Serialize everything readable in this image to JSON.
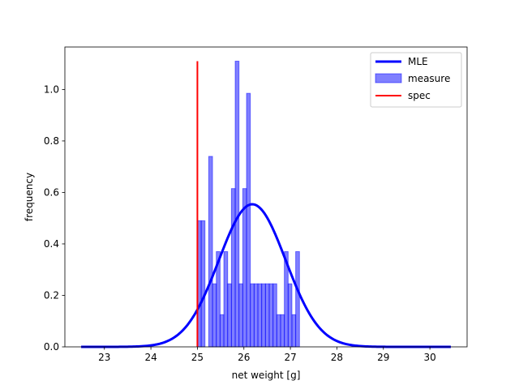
{
  "chart_data": {
    "type": "histogram",
    "xlabel": "net weight [g]",
    "ylabel": "frequency",
    "xlim": [
      22.15,
      30.8
    ],
    "ylim": [
      0.0,
      1.165
    ],
    "x_ticks": [
      "23",
      "24",
      "25",
      "26",
      "27",
      "28",
      "29",
      "30"
    ],
    "x_tick_values": [
      23,
      24,
      25,
      26,
      27,
      28,
      29,
      30
    ],
    "y_ticks": [
      "0.0",
      "0.2",
      "0.4",
      "0.6",
      "0.8",
      "1.0"
    ],
    "y_tick_values": [
      0.0,
      0.2,
      0.4,
      0.6,
      0.8,
      1.0
    ],
    "legend": {
      "placement": "top-right",
      "entries": [
        {
          "label": "MLE",
          "kind": "line",
          "color": "#0000ff"
        },
        {
          "label": "measure",
          "kind": "patch",
          "color": "#0000ff"
        },
        {
          "label": "spec",
          "kind": "line",
          "color": "#ff0000"
        }
      ]
    },
    "histogram": {
      "name": "measure",
      "color": "#0000ff",
      "alpha": 0.5,
      "bin_start": 25.0,
      "bin_width": 0.0813,
      "values": [
        0.49,
        0.49,
        0.0,
        0.74,
        0.245,
        0.37,
        0.125,
        0.37,
        0.245,
        0.615,
        1.11,
        0.245,
        0.615,
        0.985,
        0.245,
        0.245,
        0.245,
        0.245,
        0.245,
        0.245,
        0.245,
        0.125,
        0.125,
        0.37,
        0.245,
        0.125,
        0.37
      ]
    },
    "mle_curve": {
      "name": "MLE",
      "color": "#0000ff",
      "distribution": "normal",
      "mean": 26.18,
      "std": 0.72,
      "x_range": [
        22.5,
        30.45
      ]
    },
    "spec_line": {
      "name": "spec",
      "color": "#ff0000",
      "x": 25.0,
      "y_range": [
        0.0,
        1.11
      ]
    }
  }
}
